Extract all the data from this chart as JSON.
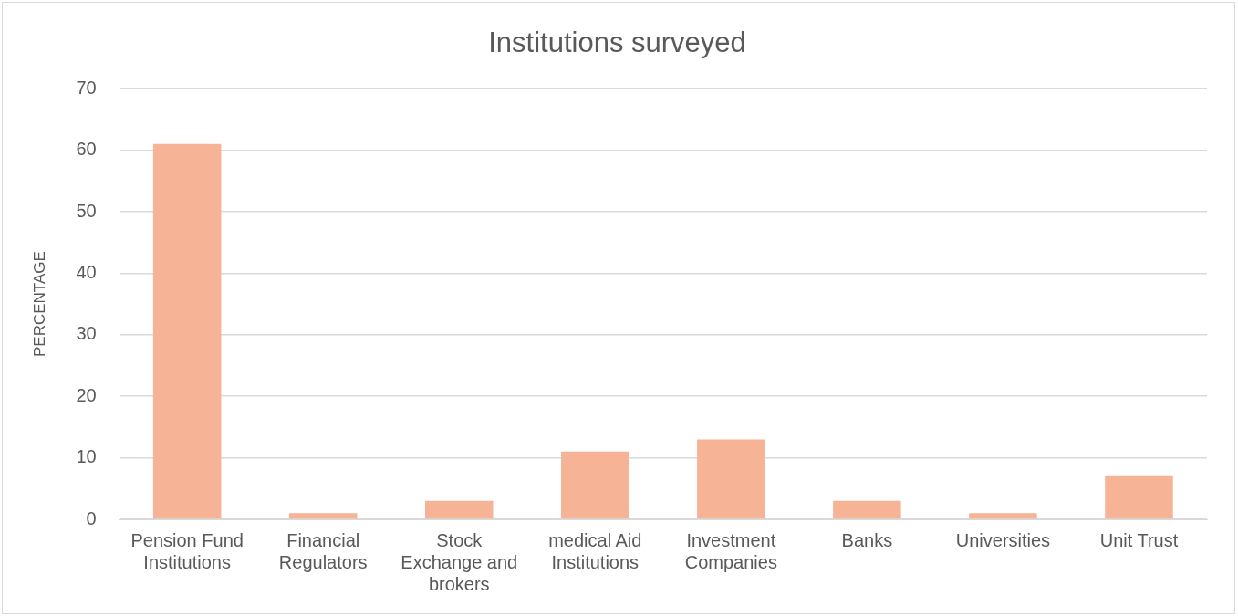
{
  "chart_data": {
    "type": "bar",
    "title": "Institutions surveyed",
    "ylabel": "PERCENTAGE",
    "categories": [
      "Pension Fund Institutions",
      "Financial Regulators",
      "Stock Exchange and brokers",
      "medical Aid Institutions",
      "Investment Companies",
      "Banks",
      "Universities",
      "Unit Trust"
    ],
    "values": [
      61,
      1,
      3,
      11,
      13,
      3,
      1,
      7
    ],
    "color": "#f6b395",
    "ylim": [
      0,
      70
    ],
    "yticks": [
      0,
      10,
      20,
      30,
      40,
      50,
      60,
      70
    ],
    "grid": "y",
    "legend": false
  }
}
